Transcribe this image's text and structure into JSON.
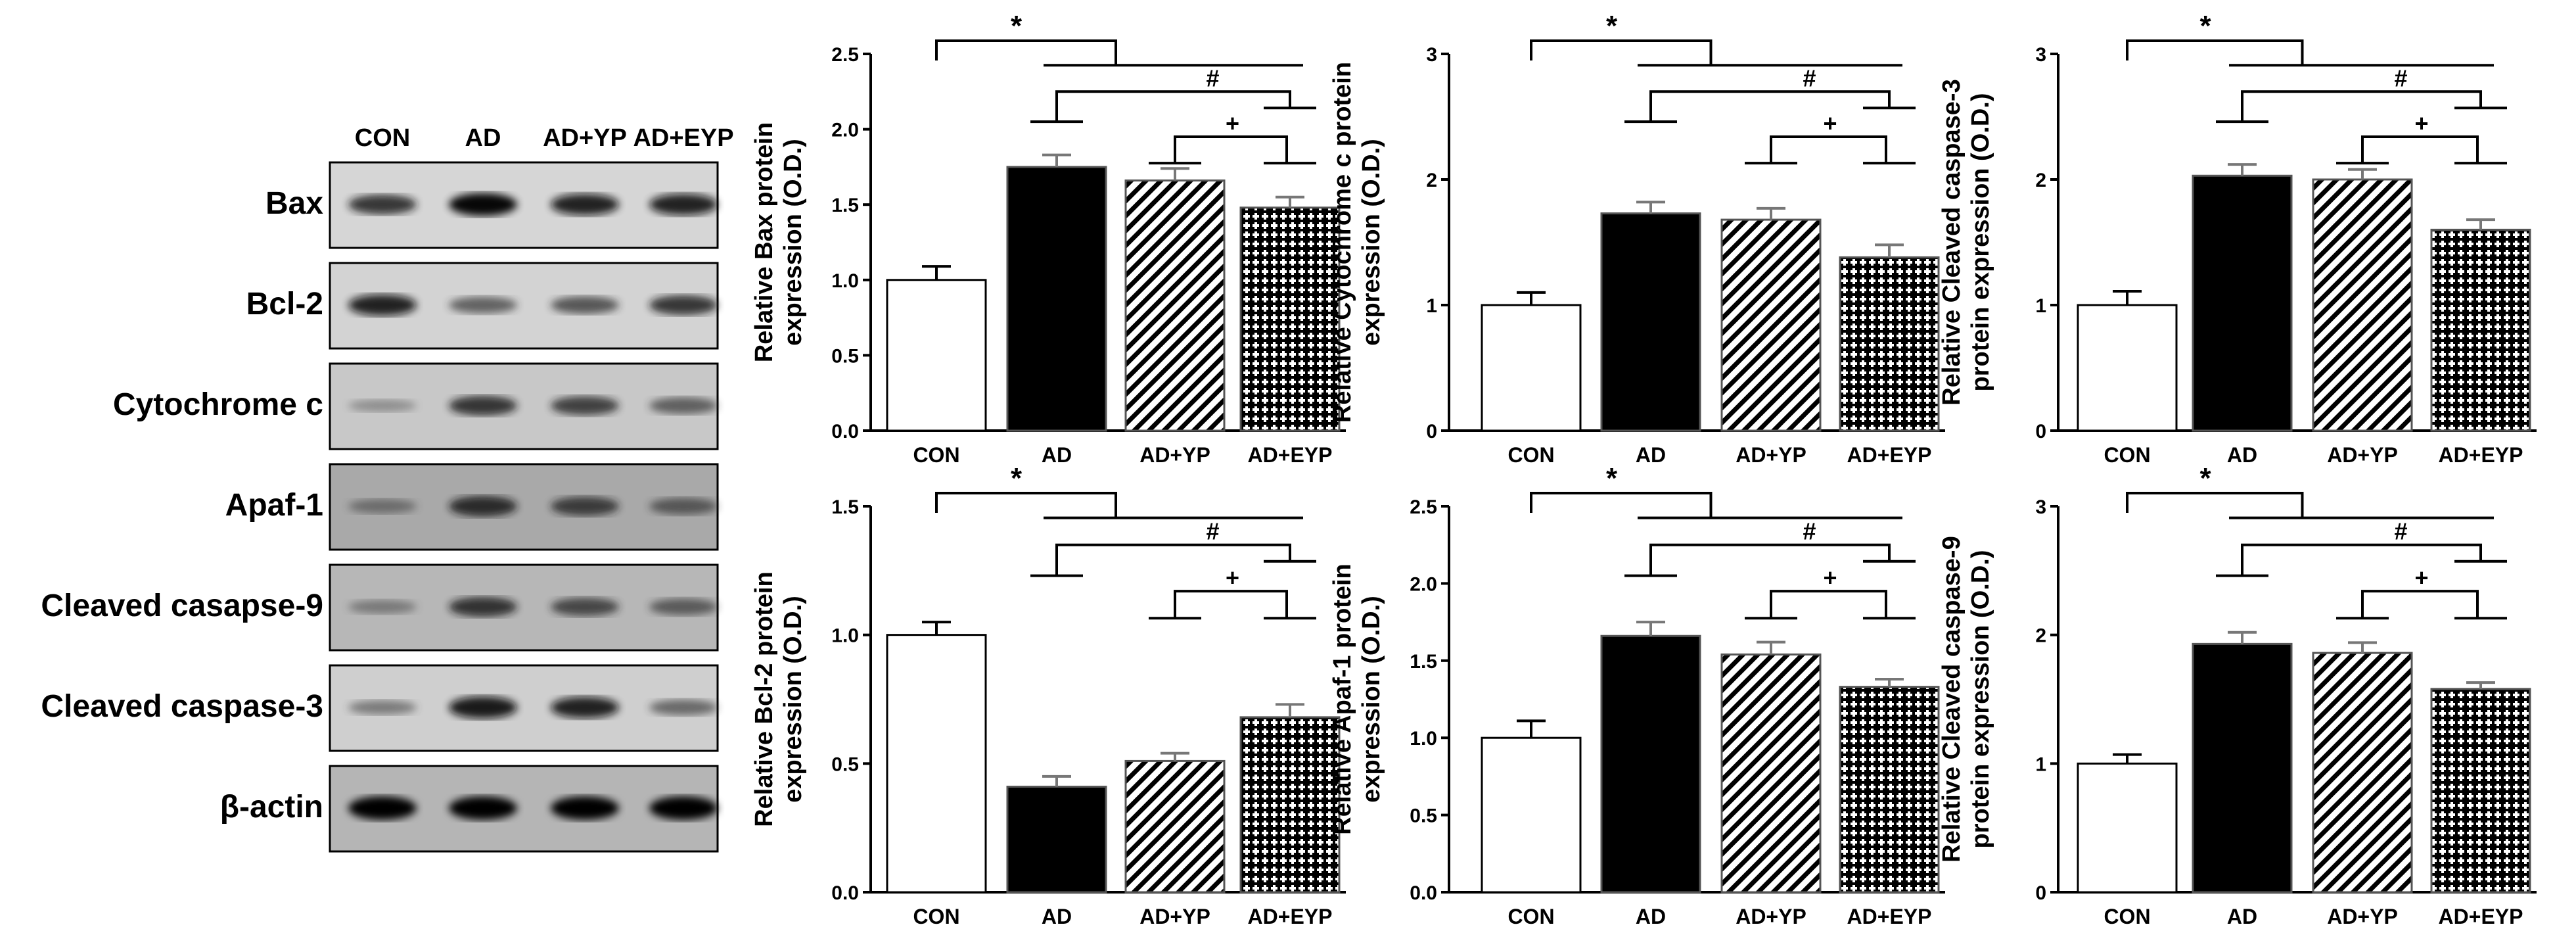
{
  "blot": {
    "lanes": [
      "CON",
      "AD",
      "AD+YP",
      "AD+EYP"
    ],
    "rows": [
      {
        "label": "Bax",
        "intensity": [
          0.75,
          0.95,
          0.85,
          0.85
        ],
        "bg": "#d6d6d6"
      },
      {
        "label": "Bcl-2",
        "intensity": [
          0.85,
          0.55,
          0.6,
          0.75
        ],
        "bg": "#d3d3d3"
      },
      {
        "label": "Cytochrome c",
        "intensity": [
          0.25,
          0.75,
          0.7,
          0.55
        ],
        "bg": "#c8c8c8"
      },
      {
        "label": "Apaf-1",
        "intensity": [
          0.4,
          0.8,
          0.7,
          0.55
        ],
        "bg": "#a9a9a9"
      },
      {
        "label": "Cleaved casapse-9",
        "intensity": [
          0.35,
          0.75,
          0.65,
          0.55
        ],
        "bg": "#b7b7b7"
      },
      {
        "label": "Cleaved caspase-3",
        "intensity": [
          0.4,
          0.9,
          0.85,
          0.5
        ],
        "bg": "#cfcfcf"
      },
      {
        "label": "β-actin",
        "intensity": [
          1,
          1,
          1,
          1
        ],
        "bg": "#b5b5b5"
      }
    ]
  },
  "chart_data": [
    {
      "type": "bar",
      "ylabel": [
        "Relative Bax protein",
        "expression (O.D.)"
      ],
      "categories": [
        "CON",
        "AD",
        "AD+YP",
        "AD+EYP"
      ],
      "values": [
        1.0,
        1.75,
        1.66,
        1.48
      ],
      "errors": [
        0.09,
        0.08,
        0.08,
        0.07
      ],
      "ylim": [
        0,
        2.5
      ],
      "ticks": [
        "0.0",
        "0.5",
        "1.0",
        "1.5",
        "2.0",
        "2.5"
      ],
      "significance": [
        "*",
        "#",
        "+"
      ]
    },
    {
      "type": "bar",
      "ylabel": [
        "Relative Cytochrome c protein",
        "expression (O.D.)"
      ],
      "categories": [
        "CON",
        "AD",
        "AD+YP",
        "AD+EYP"
      ],
      "values": [
        1.0,
        1.73,
        1.68,
        1.38
      ],
      "errors": [
        0.1,
        0.09,
        0.09,
        0.1
      ],
      "ylim": [
        0,
        3
      ],
      "ticks": [
        "0",
        "1",
        "2",
        "3"
      ],
      "significance": [
        "*",
        "#",
        "+"
      ]
    },
    {
      "type": "bar",
      "ylabel": [
        "Relative Cleaved caspase-3",
        "protein expression (O.D.)"
      ],
      "categories": [
        "CON",
        "AD",
        "AD+YP",
        "AD+EYP"
      ],
      "values": [
        1.0,
        2.03,
        2.0,
        1.6
      ],
      "errors": [
        0.11,
        0.09,
        0.08,
        0.08
      ],
      "ylim": [
        0,
        3
      ],
      "ticks": [
        "0",
        "1",
        "2",
        "3"
      ],
      "significance": [
        "*",
        "#",
        "+"
      ]
    },
    {
      "type": "bar",
      "ylabel": [
        "Relative Bcl-2 protein",
        "expression (O.D.)"
      ],
      "categories": [
        "CON",
        "AD",
        "AD+YP",
        "AD+EYP"
      ],
      "values": [
        1.0,
        0.41,
        0.51,
        0.68
      ],
      "errors": [
        0.05,
        0.04,
        0.03,
        0.05
      ],
      "ylim": [
        0,
        1.5
      ],
      "ticks": [
        "0.0",
        "0.5",
        "1.0",
        "1.5"
      ],
      "significance": [
        "*",
        "#",
        "+"
      ]
    },
    {
      "type": "bar",
      "ylabel": [
        "Relative Apaf-1 protein",
        "expression (O.D.)"
      ],
      "categories": [
        "CON",
        "AD",
        "AD+YP",
        "AD+EYP"
      ],
      "values": [
        1.0,
        1.66,
        1.54,
        1.33
      ],
      "errors": [
        0.11,
        0.09,
        0.08,
        0.05
      ],
      "ylim": [
        0,
        2.5
      ],
      "ticks": [
        "0.0",
        "0.5",
        "1.0",
        "1.5",
        "2.0",
        "2.5"
      ],
      "significance": [
        "*",
        "#",
        "+"
      ]
    },
    {
      "type": "bar",
      "ylabel": [
        "Relative Cleaved caspase-9",
        "protein expression (O.D.)"
      ],
      "categories": [
        "CON",
        "AD",
        "AD+YP",
        "AD+EYP"
      ],
      "values": [
        1.0,
        1.93,
        1.86,
        1.58
      ],
      "errors": [
        0.07,
        0.09,
        0.08,
        0.05
      ],
      "ylim": [
        0,
        3
      ],
      "ticks": [
        "0",
        "1",
        "2",
        "3"
      ],
      "significance": [
        "*",
        "#",
        "+"
      ]
    }
  ]
}
